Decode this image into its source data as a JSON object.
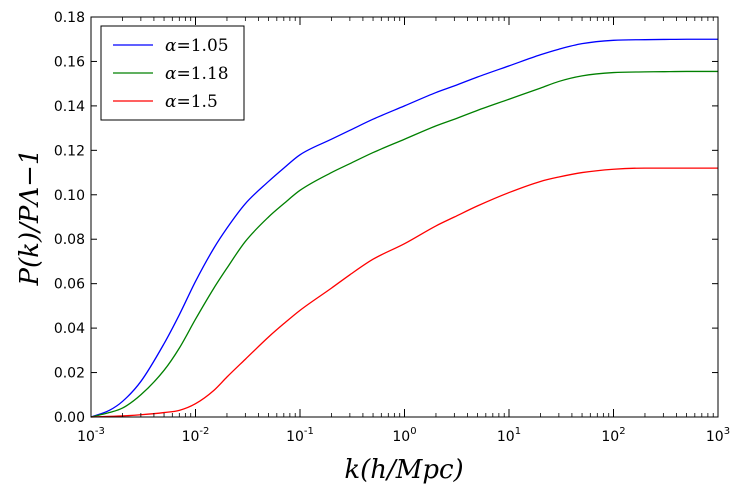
{
  "chart_data": {
    "type": "line",
    "xscale": "log",
    "xlim": [
      0.001,
      1000
    ],
    "ylim": [
      0.0,
      0.18
    ],
    "xlabel": "k(h/Mpc)",
    "ylabel": "P(k)/PΛ−1",
    "xticks": [
      {
        "base": "10",
        "exp": "-3"
      },
      {
        "base": "10",
        "exp": "-2"
      },
      {
        "base": "10",
        "exp": "-1"
      },
      {
        "base": "10",
        "exp": "0"
      },
      {
        "base": "10",
        "exp": "1"
      },
      {
        "base": "10",
        "exp": "2"
      },
      {
        "base": "10",
        "exp": "3"
      }
    ],
    "yticks": [
      "0.00",
      "0.02",
      "0.04",
      "0.06",
      "0.08",
      "0.10",
      "0.12",
      "0.14",
      "0.16",
      "0.18"
    ],
    "grid": false,
    "legend_position": "top-left",
    "series": [
      {
        "name": "α=1.05",
        "symbol": "α",
        "value": "=1.05",
        "color": "#0000ff",
        "x": [
          0.001,
          0.0015,
          0.002,
          0.003,
          0.005,
          0.007,
          0.01,
          0.015,
          0.02,
          0.03,
          0.05,
          0.07,
          0.1,
          0.2,
          0.3,
          0.5,
          1,
          2,
          3,
          5,
          10,
          20,
          30,
          50,
          100,
          200,
          300,
          500,
          1000
        ],
        "y": [
          0.0,
          0.003,
          0.007,
          0.016,
          0.033,
          0.046,
          0.061,
          0.076,
          0.085,
          0.096,
          0.106,
          0.112,
          0.118,
          0.125,
          0.129,
          0.134,
          0.14,
          0.146,
          0.149,
          0.153,
          0.158,
          0.163,
          0.1655,
          0.168,
          0.1695,
          0.1698,
          0.1699,
          0.17,
          0.17
        ]
      },
      {
        "name": "α=1.18",
        "symbol": "α",
        "value": "=1.18",
        "color": "#008000",
        "x": [
          0.001,
          0.0015,
          0.002,
          0.003,
          0.005,
          0.007,
          0.01,
          0.015,
          0.02,
          0.03,
          0.05,
          0.07,
          0.1,
          0.2,
          0.3,
          0.5,
          1,
          2,
          3,
          5,
          10,
          20,
          30,
          50,
          100,
          200,
          300,
          500,
          1000
        ],
        "y": [
          0.0,
          0.002,
          0.004,
          0.01,
          0.021,
          0.031,
          0.044,
          0.058,
          0.067,
          0.079,
          0.09,
          0.096,
          0.102,
          0.11,
          0.114,
          0.119,
          0.125,
          0.131,
          0.134,
          0.138,
          0.143,
          0.148,
          0.151,
          0.1535,
          0.155,
          0.1553,
          0.1554,
          0.1555,
          0.1555
        ]
      },
      {
        "name": "α=1.5",
        "symbol": "α",
        "value": "=1.5",
        "color": "#ff0000",
        "x": [
          0.001,
          0.002,
          0.003,
          0.005,
          0.007,
          0.01,
          0.015,
          0.02,
          0.03,
          0.05,
          0.07,
          0.1,
          0.2,
          0.3,
          0.5,
          1,
          2,
          3,
          5,
          10,
          20,
          30,
          50,
          100,
          200,
          300,
          500,
          1000
        ],
        "y": [
          0.0,
          0.0005,
          0.001,
          0.002,
          0.003,
          0.006,
          0.012,
          0.018,
          0.026,
          0.036,
          0.042,
          0.048,
          0.058,
          0.064,
          0.071,
          0.078,
          0.086,
          0.09,
          0.095,
          0.101,
          0.106,
          0.108,
          0.11,
          0.1115,
          0.112,
          0.112,
          0.112,
          0.112
        ]
      }
    ]
  }
}
